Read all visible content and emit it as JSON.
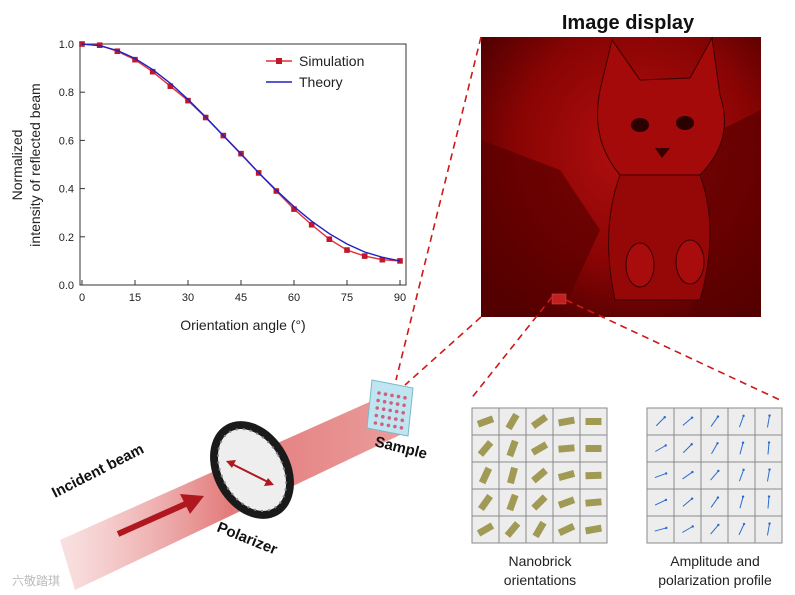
{
  "image_title": "Image display",
  "chart_data": {
    "type": "line",
    "xlabel": "Orientation angle (°)",
    "ylabel_lines": [
      "Normalized",
      "intensity of reflected beam"
    ],
    "x_ticks": [
      "0",
      "15",
      "30",
      "45",
      "60",
      "75",
      "90"
    ],
    "y_ticks": [
      "0.0",
      "0.2",
      "0.4",
      "0.6",
      "0.8",
      "1.0"
    ],
    "xlim": [
      0,
      90
    ],
    "ylim": [
      0,
      1.0
    ],
    "legend_position": "top-right",
    "series": [
      {
        "name": "Simulation",
        "color": "#e0303a",
        "marker": "square",
        "x": [
          0,
          5,
          10,
          15,
          20,
          25,
          30,
          35,
          40,
          45,
          50,
          55,
          60,
          65,
          70,
          75,
          80,
          85,
          90
        ],
        "y": [
          1.0,
          0.995,
          0.97,
          0.935,
          0.885,
          0.825,
          0.765,
          0.695,
          0.62,
          0.545,
          0.465,
          0.39,
          0.315,
          0.25,
          0.19,
          0.145,
          0.12,
          0.105,
          0.1
        ]
      },
      {
        "name": "Theory",
        "color": "#2020c0",
        "marker": "none",
        "x": [
          0,
          5,
          10,
          15,
          20,
          25,
          30,
          35,
          40,
          45,
          50,
          55,
          60,
          65,
          70,
          75,
          80,
          85,
          90
        ],
        "y": [
          1.0,
          0.993,
          0.973,
          0.94,
          0.894,
          0.837,
          0.77,
          0.697,
          0.62,
          0.543,
          0.466,
          0.393,
          0.325,
          0.265,
          0.213,
          0.17,
          0.137,
          0.115,
          0.1
        ]
      }
    ]
  },
  "labels": {
    "incident_beam": "Incident beam",
    "polarizer": "Polarizer",
    "sample": "Sample",
    "nanobrick_line1": "Nanobrick",
    "nanobrick_line2": "orientations",
    "amplitude_line1": "Amplitude and",
    "amplitude_line2": "polarization profile",
    "watermark": "六敬踏琪"
  },
  "colors": {
    "beam": "#c4202a",
    "image_tint": "#8a0000",
    "nanobrick": "#a09a55",
    "arrow": "#2a6ad0",
    "dash": "#d01818"
  },
  "grids": {
    "nanobrick_angles": [
      [
        70,
        30,
        55,
        80,
        90
      ],
      [
        40,
        20,
        60,
        85,
        90
      ],
      [
        25,
        15,
        50,
        75,
        88
      ],
      [
        35,
        20,
        45,
        70,
        85
      ],
      [
        60,
        40,
        30,
        65,
        80
      ]
    ],
    "polarization_angles": [
      [
        -45,
        -40,
        -55,
        -70,
        -80
      ],
      [
        -30,
        -45,
        -60,
        -75,
        -85
      ],
      [
        -20,
        -35,
        -50,
        -70,
        -80
      ],
      [
        -25,
        -40,
        -55,
        -75,
        -85
      ],
      [
        -15,
        -30,
        -50,
        -65,
        -80
      ]
    ]
  }
}
